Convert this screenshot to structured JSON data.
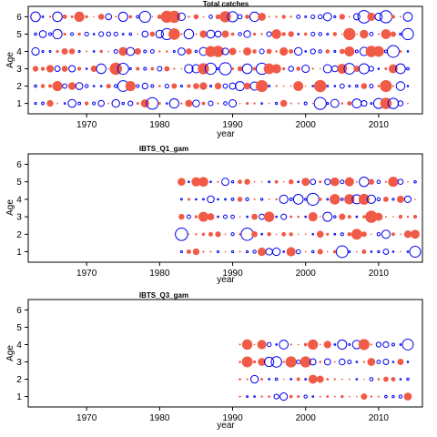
{
  "chart_data": [
    {
      "type": "scatter",
      "title": "Total catches",
      "xlabel": "year",
      "ylabel": "Age",
      "xlim": [
        1962,
        2016
      ],
      "ylim": [
        0.4,
        6.6
      ],
      "xticks": [
        1970,
        1980,
        1990,
        2000,
        2010
      ],
      "yticks": [
        1,
        2,
        3,
        4,
        5,
        6
      ],
      "year_range": [
        1963,
        2014
      ],
      "ages": [
        1,
        2,
        3,
        4,
        5,
        6
      ],
      "marker_fill_color": "#f05a46",
      "marker_outline_color": "#0000ee",
      "seed": 11
    },
    {
      "type": "scatter",
      "title": "IBTS_Q1_gam",
      "xlabel": "year",
      "ylabel": "Age",
      "xlim": [
        1962,
        2016
      ],
      "ylim": [
        0.4,
        6.6
      ],
      "xticks": [
        1970,
        1980,
        1990,
        2000,
        2010
      ],
      "yticks": [
        1,
        2,
        3,
        4,
        5,
        6
      ],
      "year_range": [
        1983,
        2015
      ],
      "ages": [
        1,
        2,
        3,
        4,
        5
      ],
      "marker_fill_color": "#f05a46",
      "marker_outline_color": "#0000ee",
      "seed": 23
    },
    {
      "type": "scatter",
      "title": "IBTS_Q3_gam",
      "xlabel": "year",
      "ylabel": "Age",
      "xlim": [
        1962,
        2016
      ],
      "ylim": [
        0.4,
        6.6
      ],
      "xticks": [
        1970,
        1980,
        1990,
        2000,
        2010
      ],
      "yticks": [
        1,
        2,
        3,
        4,
        5,
        6
      ],
      "year_range": [
        1991,
        2014
      ],
      "ages": [
        1,
        2,
        3,
        4
      ],
      "marker_fill_color": "#f05a46",
      "marker_outline_color": "#0000ee",
      "seed": 37
    }
  ]
}
